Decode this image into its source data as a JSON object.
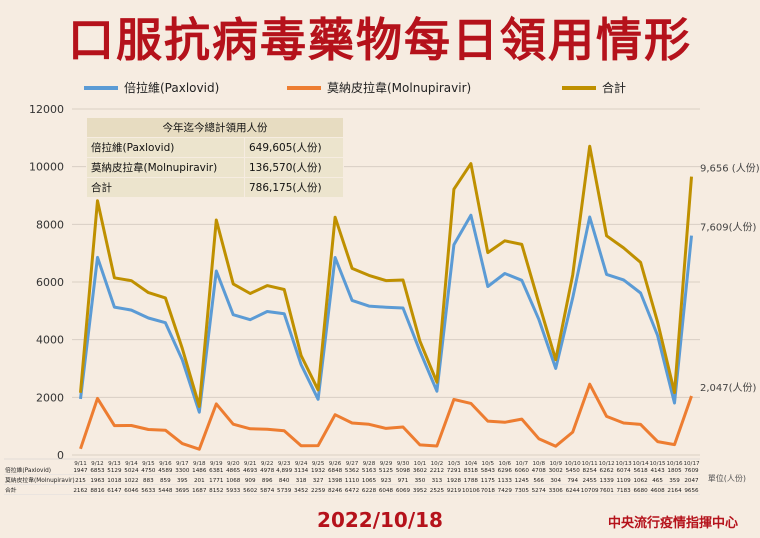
{
  "title": "口服抗病毒藥物每日領用情形",
  "date": "2022/10/18",
  "agency": "中央流行疫情指揮中心",
  "unit_label": "單位(人份)",
  "summary": {
    "header": "今年迄今總計領用人份",
    "rows": [
      {
        "label": "倍拉維(Paxlovid)",
        "value": "649,605(人份)"
      },
      {
        "label": "莫納皮拉韋(Molnupiravir)",
        "value": "136,570(人份)"
      },
      {
        "label": "合計",
        "value": "786,175(人份)"
      }
    ]
  },
  "chart_data": {
    "type": "line",
    "categories": [
      "9/11",
      "9/12",
      "9/13",
      "9/14",
      "9/15",
      "9/16",
      "9/17",
      "9/18",
      "9/19",
      "9/20",
      "9/21",
      "9/22",
      "9/23",
      "9/24",
      "9/25",
      "9/26",
      "9/27",
      "9/28",
      "9/29",
      "9/30",
      "10/1",
      "10/2",
      "10/3",
      "10/4",
      "10/5",
      "10/6",
      "10/7",
      "10/8",
      "10/9",
      "10/10",
      "10/11",
      "10/12",
      "10/13",
      "10/14",
      "10/15",
      "10/16",
      "10/17"
    ],
    "series": [
      {
        "name": "倍拉維(Paxlovid)",
        "table_label": "倍拉維(Paxlovid)",
        "color": "#5b9bd5",
        "values": [
          1947,
          6853,
          5129,
          5024,
          4750,
          4589,
          3300,
          1486,
          6381,
          4865,
          4693,
          4978,
          4899,
          3134,
          1932,
          6848,
          5362,
          5163,
          5125,
          5098,
          3602,
          2212,
          7291,
          8318,
          5843,
          6296,
          6060,
          4708,
          3002,
          5450,
          8254,
          6262,
          6074,
          5618,
          4143,
          1805,
          7609
        ],
        "labels": [
          "1947",
          "6853",
          "5129",
          "5024",
          "4750",
          "4589",
          "3300",
          "1486",
          "6381",
          "4865",
          "4693",
          "4978",
          "4,899",
          "3134",
          "1932",
          "6848",
          "5362",
          "5163",
          "5125",
          "5098",
          "3602",
          "2212",
          "7291",
          "8318",
          "5843",
          "6296",
          "6060",
          "4708",
          "3002",
          "5450",
          "8254",
          "6262",
          "6074",
          "5618",
          "4143",
          "1805",
          "7609"
        ]
      },
      {
        "name": "莫納皮拉韋(Molnupiravir)",
        "table_label": "莫納皮拉韋(Molnupiravir)",
        "color": "#ed7d31",
        "values": [
          215,
          1963,
          1018,
          1022,
          883,
          859,
          395,
          201,
          1771,
          1068,
          909,
          896,
          840,
          318,
          327,
          1398,
          1110,
          1065,
          923,
          971,
          350,
          313,
          1928,
          1788,
          1175,
          1133,
          1245,
          566,
          304,
          794,
          2455,
          1339,
          1109,
          1062,
          465,
          359,
          2047
        ],
        "labels": [
          "215",
          "1963",
          "1018",
          "1022",
          "883",
          "859",
          "395",
          "201",
          "1771",
          "1068",
          "909",
          "896",
          "840",
          "318",
          "327",
          "1398",
          "1110",
          "1065",
          "923",
          "971",
          "350",
          "313",
          "1928",
          "1788",
          "1175",
          "1133",
          "1245",
          "566",
          "304",
          "794",
          "2455",
          "1339",
          "1109",
          "1062",
          "465",
          "359",
          "2047"
        ]
      },
      {
        "name": "合計",
        "table_label": "合計",
        "color": "#bf9000",
        "values": [
          2162,
          8816,
          6147,
          6046,
          5633,
          5448,
          3695,
          1687,
          8152,
          5933,
          5602,
          5874,
          5739,
          3452,
          2259,
          8246,
          6472,
          6228,
          6048,
          6069,
          3952,
          2525,
          9219,
          10106,
          7018,
          7429,
          7305,
          5274,
          3306,
          6244,
          10709,
          7601,
          7183,
          6680,
          4608,
          2164,
          9656
        ],
        "labels": [
          "2162",
          "8816",
          "6147",
          "6046",
          "5633",
          "5448",
          "3695",
          "1687",
          "8152",
          "5933",
          "5602",
          "5874",
          "5739",
          "3452",
          "2259",
          "8246",
          "6472",
          "6228",
          "6048",
          "6069",
          "3952",
          "2525",
          "9219",
          "10106",
          "7018",
          "7429",
          "7305",
          "5274",
          "3306",
          "6244",
          "10709",
          "7601",
          "7183",
          "6680",
          "4608",
          "2164",
          "9656"
        ]
      }
    ],
    "ylim": [
      0,
      12000
    ],
    "yticks": [
      "0",
      "2000",
      "4000",
      "6000",
      "8000",
      "10000",
      "12000"
    ],
    "end_labels": [
      "9,656 (人份)",
      "7,609(人份)",
      "2,047(人份)"
    ],
    "grid": true,
    "legend": "top"
  }
}
